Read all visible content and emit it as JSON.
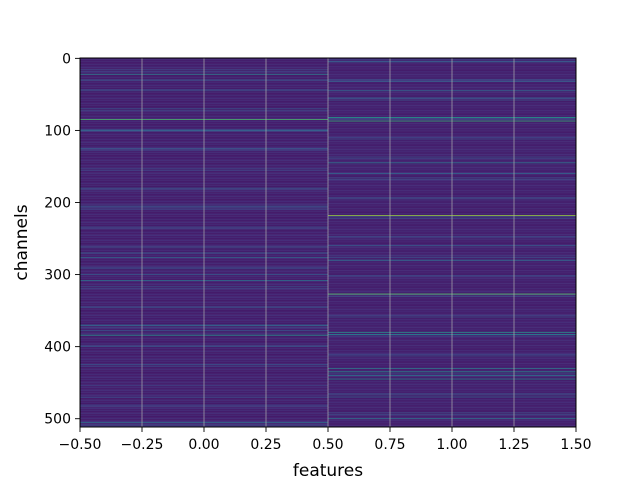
{
  "chart_data": {
    "type": "heatmap",
    "xlabel": "features",
    "ylabel": "channels",
    "xlim": [
      -0.5,
      1.5
    ],
    "ylim": [
      511.5,
      -0.5
    ],
    "x_ticks": [
      "−0.50",
      "−0.25",
      "0.00",
      "0.25",
      "0.50",
      "0.75",
      "1.00",
      "1.25",
      "1.50"
    ],
    "x_tick_values": [
      -0.5,
      -0.25,
      0.0,
      0.25,
      0.5,
      0.75,
      1.0,
      1.25,
      1.5
    ],
    "y_ticks": [
      "0",
      "100",
      "200",
      "300",
      "400",
      "500"
    ],
    "y_tick_values": [
      0,
      100,
      200,
      300,
      400,
      500
    ],
    "columns": [
      0,
      1
    ],
    "channels": 512,
    "colormap": [
      "#440154",
      "#46337e",
      "#365c8d",
      "#277f8e",
      "#1fa187",
      "#4ac16d",
      "#a0da39",
      "#fde725"
    ],
    "base_value": 0.06,
    "grid": true,
    "highlights": [
      {
        "column": 0,
        "channel": 22,
        "value": 0.45
      },
      {
        "column": 0,
        "channel": 30,
        "value": 0.3
      },
      {
        "column": 0,
        "channel": 85,
        "value": 0.72
      },
      {
        "column": 0,
        "channel": 100,
        "value": 0.32
      },
      {
        "column": 0,
        "channel": 125,
        "value": 0.25
      },
      {
        "column": 0,
        "channel": 180,
        "value": 0.28
      },
      {
        "column": 0,
        "channel": 205,
        "value": 0.3
      },
      {
        "column": 0,
        "channel": 270,
        "value": 0.3
      },
      {
        "column": 0,
        "channel": 276,
        "value": 0.35
      },
      {
        "column": 0,
        "channel": 300,
        "value": 0.28
      },
      {
        "column": 0,
        "channel": 308,
        "value": 0.4
      },
      {
        "column": 0,
        "channel": 370,
        "value": 0.35
      },
      {
        "column": 0,
        "channel": 378,
        "value": 0.3
      },
      {
        "column": 0,
        "channel": 384,
        "value": 0.55
      },
      {
        "column": 0,
        "channel": 470,
        "value": 0.25
      },
      {
        "column": 0,
        "channel": 505,
        "value": 0.4
      },
      {
        "column": 1,
        "channel": 5,
        "value": 0.3
      },
      {
        "column": 1,
        "channel": 32,
        "value": 0.3
      },
      {
        "column": 1,
        "channel": 45,
        "value": 0.35
      },
      {
        "column": 1,
        "channel": 55,
        "value": 0.3
      },
      {
        "column": 1,
        "channel": 82,
        "value": 0.55
      },
      {
        "column": 1,
        "channel": 87,
        "value": 0.65
      },
      {
        "column": 1,
        "channel": 145,
        "value": 0.4
      },
      {
        "column": 1,
        "channel": 160,
        "value": 0.35
      },
      {
        "column": 1,
        "channel": 218,
        "value": 0.85
      },
      {
        "column": 1,
        "channel": 260,
        "value": 0.3
      },
      {
        "column": 1,
        "channel": 280,
        "value": 0.4
      },
      {
        "column": 1,
        "channel": 327,
        "value": 0.75
      },
      {
        "column": 1,
        "channel": 380,
        "value": 0.55
      },
      {
        "column": 1,
        "channel": 383,
        "value": 0.45
      },
      {
        "column": 1,
        "channel": 430,
        "value": 0.45
      },
      {
        "column": 1,
        "channel": 435,
        "value": 0.5
      },
      {
        "column": 1,
        "channel": 440,
        "value": 0.4
      },
      {
        "column": 1,
        "channel": 445,
        "value": 0.45
      },
      {
        "column": 1,
        "channel": 470,
        "value": 0.3
      },
      {
        "column": 1,
        "channel": 500,
        "value": 0.4
      }
    ]
  }
}
